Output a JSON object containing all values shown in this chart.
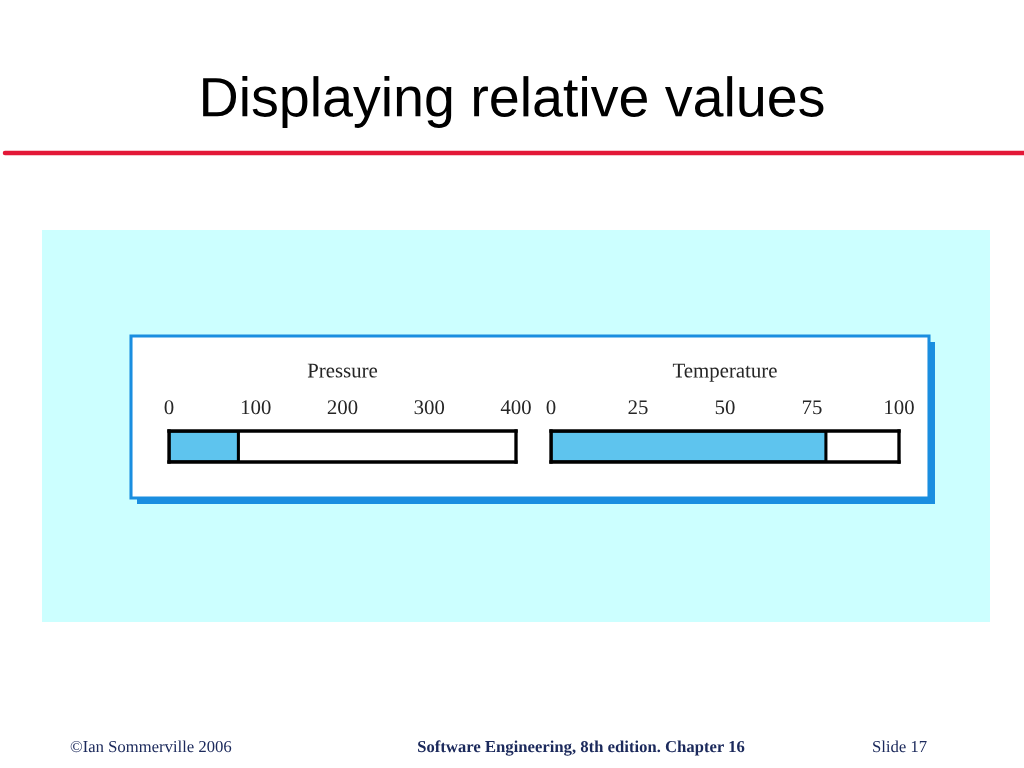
{
  "chart_data": [
    {
      "type": "bar",
      "orientation": "horizontal",
      "title": "Displaying relative values",
      "xlabel": "Pressure",
      "categories": [
        null
      ],
      "values": [
        80
      ],
      "color": "#5ec4ee",
      "xlim": [
        0,
        400
      ],
      "xticks": [
        0,
        100,
        200,
        300,
        400
      ],
      "tick_labels": "x",
      "annotations": [
        "©Ian Sommerville 2006",
        "Software Engineering, 8th edition. Chapter 16",
        "Slide 17"
      ]
    },
    {
      "type": "bar",
      "orientation": "horizontal",
      "xlabel": "Temperature",
      "categories": [
        null
      ],
      "values": [
        79
      ],
      "color": "#5ec4ee",
      "xlim": [
        0,
        100
      ],
      "xticks": [
        0,
        25,
        50,
        75,
        100
      ],
      "tick_labels": "x"
    }
  ]
}
